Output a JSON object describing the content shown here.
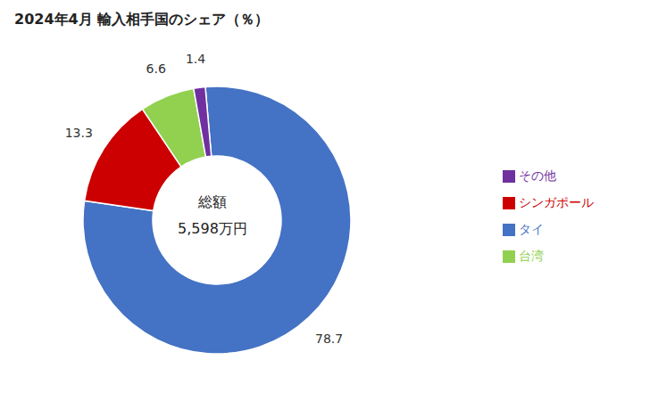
{
  "chart_data": {
    "type": "pie",
    "title": "2024年4月 輸入相手国のシェア（％）",
    "categories": [
      "タイ",
      "シンガポール",
      "台湾",
      "その他"
    ],
    "values": [
      78.7,
      13.3,
      6.6,
      1.4
    ],
    "colors": [
      "#4472C4",
      "#CC0000",
      "#92D050",
      "#7030A0"
    ],
    "annotations": [
      "総額",
      "5,598万円"
    ],
    "data_labels": true,
    "legend": "right"
  }
}
